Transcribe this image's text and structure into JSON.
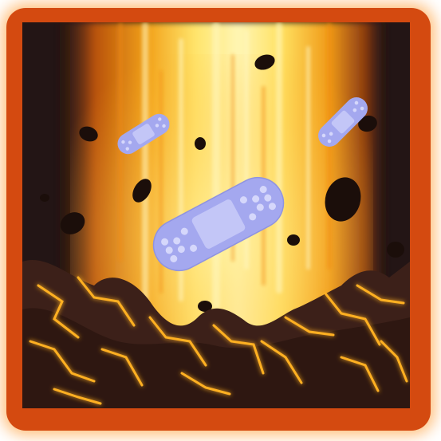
{
  "scene": {
    "title": "",
    "colors": {
      "frame": "#d44a10",
      "frame_glow": "#ff8a1a",
      "background_dark": "#231515",
      "beam_core": "#fff8b0",
      "beam_mid": "#ffd23a",
      "beam_edge": "#e8800f",
      "bandage": "#a4a8ef",
      "bandage_pad": "#c3c6f7",
      "bandage_holes": "#d5d7fb",
      "rock": "#1a0d0a",
      "lava_crack": "#ffb020",
      "ground": "#3a1f18"
    },
    "icons": {
      "main": "bandage-healing-icon",
      "bandages": [
        "bandage-icon",
        "bandage-icon",
        "bandage-icon"
      ],
      "debris": "rock-debris-icon",
      "ground": "cracked-lava-ground"
    }
  }
}
